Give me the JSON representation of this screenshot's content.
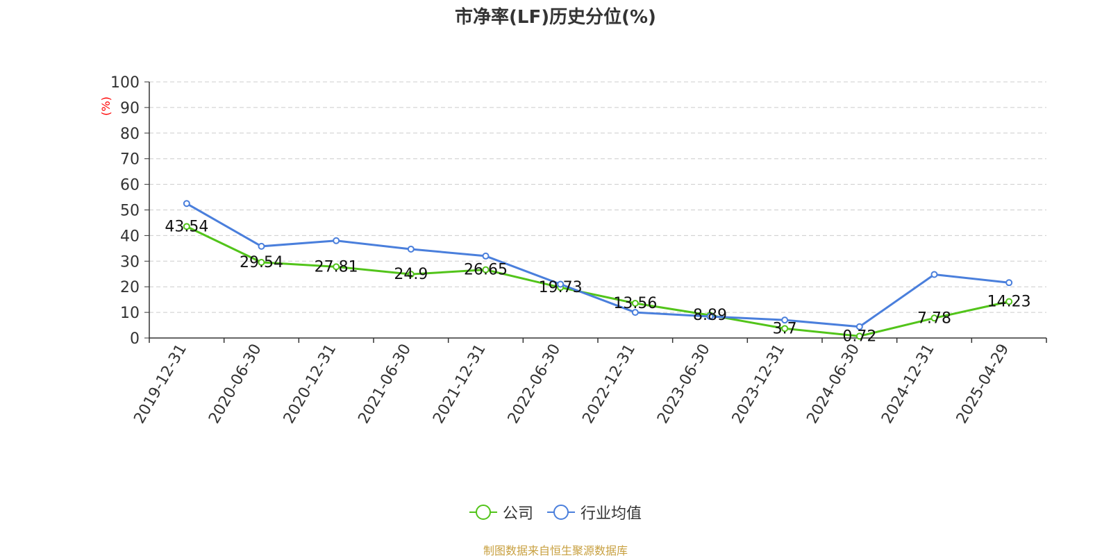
{
  "title": "市净率(LF)历史分位(%)",
  "source": "制图数据来自恒生聚源数据库",
  "colors": {
    "company": "#52c41a",
    "industry": "#4a7fdc",
    "source": "#c8a040",
    "ylabel": "#ff0000"
  },
  "chart_data": {
    "type": "line",
    "title": "市净率(LF)历史分位(%)",
    "ylabel": "(%)",
    "xlabel": "",
    "ylim": [
      0,
      100
    ],
    "yticks": [
      0,
      10,
      20,
      30,
      40,
      50,
      60,
      70,
      80,
      90,
      100
    ],
    "grid": true,
    "legend": "bottom-center",
    "categories": [
      "2019-12-31",
      "2020-06-30",
      "2020-12-31",
      "2021-06-30",
      "2021-12-31",
      "2022-06-30",
      "2022-12-31",
      "2023-06-30",
      "2023-12-31",
      "2024-06-30",
      "2024-12-31",
      "2025-04-29"
    ],
    "series": [
      {
        "name": "公司",
        "values": [
          43.54,
          29.54,
          27.81,
          24.9,
          26.65,
          19.73,
          13.56,
          8.89,
          3.7,
          0.72,
          7.78,
          14.23
        ],
        "labels": [
          "43.54",
          "29.54",
          "27.81",
          "24.9",
          "26.65",
          "19.73",
          "13.56",
          "8.89",
          "3.7",
          "0.72",
          "7.78",
          "14.23"
        ]
      },
      {
        "name": "行业均值",
        "values": [
          52.5,
          35.8,
          38.0,
          34.7,
          32.0,
          21.0,
          10.0,
          8.4,
          7.0,
          4.4,
          24.8,
          21.6
        ]
      }
    ]
  }
}
